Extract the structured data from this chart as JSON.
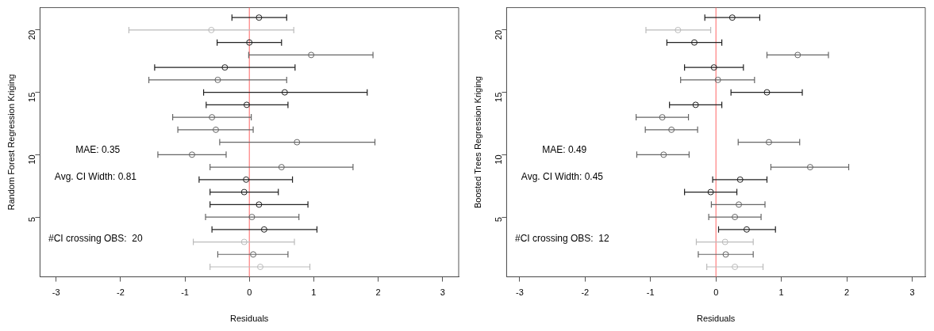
{
  "chart_data": [
    {
      "type": "scatter",
      "xlabel": "Residuals",
      "ylabel": "Random Forest Regression Kriging",
      "xlim": [
        -3.25,
        3.25
      ],
      "xticks": [
        -3,
        -2,
        -1,
        0,
        1,
        2,
        3
      ],
      "ylim": [
        0.2,
        21.8
      ],
      "yticks": [
        5,
        10,
        15,
        20
      ],
      "grid": false,
      "legend": false,
      "marker": "circle",
      "annotations": [
        "MAE: 0.35",
        "Avg. CI Width: 0.81",
        "#CI crossing OBS:  20"
      ],
      "ref_lines": [
        {
          "axis": "x",
          "value": 0,
          "color": "#ff6666"
        }
      ],
      "series": [
        {
          "x": [
            0.17,
            0.06,
            -0.08,
            0.23,
            0.04,
            0.15,
            -0.08,
            -0.05,
            0.5,
            -0.89,
            0.74,
            -0.52,
            -0.58,
            -0.04,
            0.55,
            -0.49,
            -0.38,
            0.96,
            0.0,
            -0.59,
            0.15
          ],
          "values": [
            1,
            2,
            3,
            4,
            5,
            6,
            7,
            8,
            9,
            10,
            11,
            12,
            13,
            14,
            15,
            16,
            17,
            18,
            19,
            20,
            21
          ],
          "xerrors": [
            [
              -0.61,
              0.94
            ],
            [
              -0.49,
              0.6
            ],
            [
              -0.87,
              0.7
            ],
            [
              -0.58,
              1.05
            ],
            [
              -0.68,
              0.77
            ],
            [
              -0.61,
              0.91
            ],
            [
              -0.61,
              0.45
            ],
            [
              -0.78,
              0.67
            ],
            [
              -0.61,
              1.61
            ],
            [
              -1.42,
              -0.36
            ],
            [
              -0.46,
              1.95
            ],
            [
              -1.11,
              0.06
            ],
            [
              -1.19,
              0.03
            ],
            [
              -0.67,
              0.6
            ],
            [
              -0.71,
              1.83
            ],
            [
              -1.56,
              0.58
            ],
            [
              -1.47,
              0.71
            ],
            [
              -0.01,
              1.92
            ],
            [
              -0.5,
              0.5
            ],
            [
              -1.87,
              0.69
            ],
            [
              -0.27,
              0.58
            ]
          ],
          "colors": [
            "#bbbbbb",
            "#666666",
            "#bbbbbb",
            "#222222",
            "#666666",
            "#222222",
            "#222222",
            "#222222",
            "#666666",
            "#666666",
            "#666666",
            "#666666",
            "#666666",
            "#222222",
            "#222222",
            "#666666",
            "#222222",
            "#666666",
            "#222222",
            "#bbbbbb",
            "#222222"
          ]
        }
      ]
    },
    {
      "type": "scatter",
      "xlabel": "Residuals",
      "ylabel": "Boosted Trees Regression Kriging",
      "xlim": [
        -3.2,
        3.2
      ],
      "xticks": [
        -3,
        -2,
        -1,
        0,
        1,
        2,
        3
      ],
      "ylim": [
        0.2,
        21.8
      ],
      "yticks": [
        5,
        10,
        15,
        20
      ],
      "grid": false,
      "legend": false,
      "marker": "circle",
      "annotations": [
        "MAE: 0.49",
        "Avg. CI Width: 0.45",
        "#CI crossing OBS:  12"
      ],
      "ref_lines": [
        {
          "axis": "x",
          "value": 0,
          "color": "#ff6666"
        }
      ],
      "series": [
        {
          "x": [
            0.29,
            0.15,
            0.14,
            0.47,
            0.29,
            0.35,
            -0.08,
            0.37,
            1.44,
            -0.8,
            0.81,
            -0.68,
            -0.82,
            -0.31,
            0.78,
            0.03,
            -0.03,
            1.25,
            -0.33,
            -0.58,
            0.25
          ],
          "values": [
            1,
            2,
            3,
            4,
            5,
            6,
            7,
            8,
            9,
            10,
            11,
            12,
            13,
            14,
            15,
            16,
            17,
            18,
            19,
            20,
            21
          ],
          "xerrors": [
            [
              -0.14,
              0.72
            ],
            [
              -0.27,
              0.57
            ],
            [
              -0.3,
              0.57
            ],
            [
              0.04,
              0.91
            ],
            [
              -0.11,
              0.69
            ],
            [
              -0.07,
              0.75
            ],
            [
              -0.48,
              0.32
            ],
            [
              -0.05,
              0.78
            ],
            [
              0.84,
              2.03
            ],
            [
              -1.21,
              -0.41
            ],
            [
              0.34,
              1.28
            ],
            [
              -1.08,
              -0.28
            ],
            [
              -1.22,
              -0.42
            ],
            [
              -0.71,
              0.09
            ],
            [
              0.23,
              1.32
            ],
            [
              -0.54,
              0.59
            ],
            [
              -0.48,
              0.42
            ],
            [
              0.78,
              1.72
            ],
            [
              -0.75,
              0.09
            ],
            [
              -1.07,
              -0.08
            ],
            [
              -0.17,
              0.67
            ]
          ],
          "colors": [
            "#bbbbbb",
            "#666666",
            "#bbbbbb",
            "#222222",
            "#666666",
            "#666666",
            "#222222",
            "#222222",
            "#666666",
            "#666666",
            "#666666",
            "#666666",
            "#666666",
            "#222222",
            "#222222",
            "#666666",
            "#222222",
            "#666666",
            "#222222",
            "#bbbbbb",
            "#222222"
          ]
        }
      ]
    }
  ]
}
